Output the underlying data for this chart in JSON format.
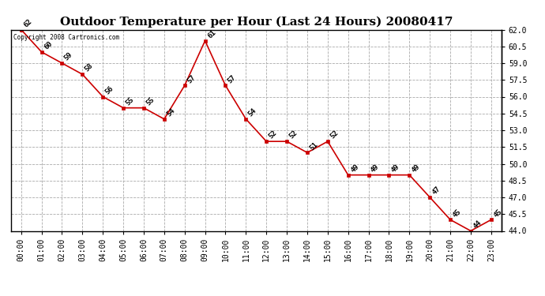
{
  "title": "Outdoor Temperature per Hour (Last 24 Hours) 20080417",
  "copyright_text": "Copyright 2008 Cartronics.com",
  "hours": [
    "00:00",
    "01:00",
    "02:00",
    "03:00",
    "04:00",
    "05:00",
    "06:00",
    "07:00",
    "08:00",
    "09:00",
    "10:00",
    "11:00",
    "12:00",
    "13:00",
    "14:00",
    "15:00",
    "16:00",
    "17:00",
    "18:00",
    "19:00",
    "20:00",
    "21:00",
    "22:00",
    "23:00"
  ],
  "temps": [
    62,
    60,
    59,
    58,
    56,
    55,
    55,
    54,
    57,
    61,
    57,
    54,
    52,
    52,
    51,
    52,
    49,
    49,
    49,
    49,
    47,
    45,
    44,
    45
  ],
  "line_color": "#cc0000",
  "marker_color": "#cc0000",
  "bg_color": "#ffffff",
  "grid_color": "#aaaaaa",
  "ylim_min": 44.0,
  "ylim_max": 62.0,
  "yticks": [
    44.0,
    45.5,
    47.0,
    48.5,
    50.0,
    51.5,
    53.0,
    54.5,
    56.0,
    57.5,
    59.0,
    60.5,
    62.0
  ],
  "title_fontsize": 11,
  "tick_fontsize": 7,
  "annot_fontsize": 6.5,
  "copyright_fontsize": 5.5
}
